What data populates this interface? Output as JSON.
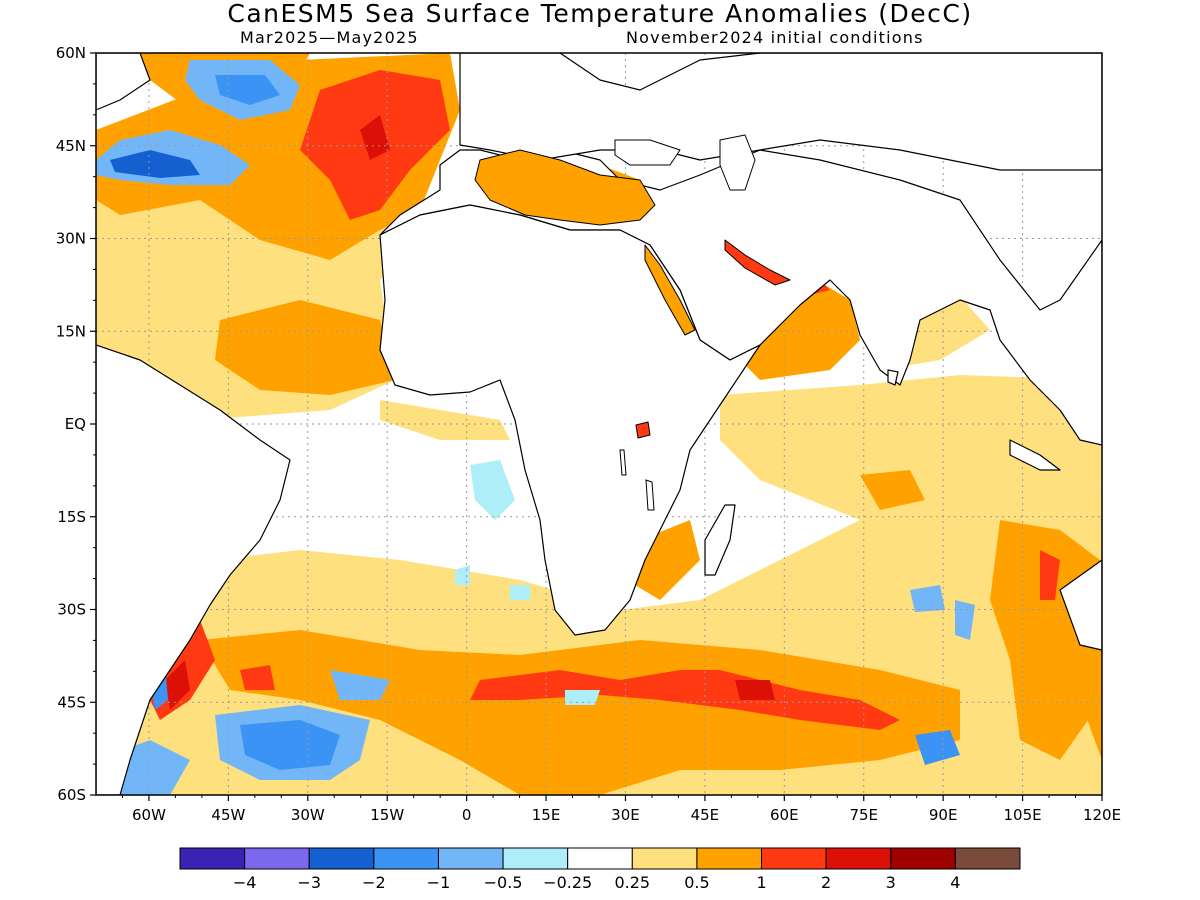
{
  "title": "CanESM5 Sea Surface Temperature Anomalies (DecC)",
  "subtitle_left": "Mar2025—May2025",
  "subtitle_right": "November2024 initial conditions",
  "lat_ticks": [
    {
      "label": "60N",
      "value": 60
    },
    {
      "label": "45N",
      "value": 45
    },
    {
      "label": "30N",
      "value": 30
    },
    {
      "label": "15N",
      "value": 15
    },
    {
      "label": "EQ",
      "value": 0
    },
    {
      "label": "15S",
      "value": -15
    },
    {
      "label": "30S",
      "value": -30
    },
    {
      "label": "45S",
      "value": -45
    },
    {
      "label": "60S",
      "value": -60
    }
  ],
  "lon_ticks": [
    {
      "label": "60W",
      "value": -60
    },
    {
      "label": "45W",
      "value": -45
    },
    {
      "label": "30W",
      "value": -30
    },
    {
      "label": "15W",
      "value": -15
    },
    {
      "label": "0",
      "value": 0
    },
    {
      "label": "15E",
      "value": 15
    },
    {
      "label": "30E",
      "value": 30
    },
    {
      "label": "45E",
      "value": 45
    },
    {
      "label": "60E",
      "value": 60
    },
    {
      "label": "75E",
      "value": 75
    },
    {
      "label": "90E",
      "value": 90
    },
    {
      "label": "105E",
      "value": 105
    },
    {
      "label": "120E",
      "value": 120
    }
  ],
  "map_extent": {
    "lon_min": -70,
    "lon_max": 120,
    "lat_min": -60,
    "lat_max": 60
  },
  "colorbar": {
    "colors": [
      "#3a22b4",
      "#7b68ee",
      "#1560d0",
      "#3a93f5",
      "#72b6f8",
      "#aeeef8",
      "#ffffff",
      "#ffe07e",
      "#ffa200",
      "#ff3a12",
      "#dc1006",
      "#a00000",
      "#7a4a3a"
    ],
    "labels": [
      "−4",
      "−3",
      "−2",
      "−1",
      "−0.5",
      "−0.25",
      "0.25",
      "0.5",
      "1",
      "2",
      "3",
      "4"
    ]
  }
}
